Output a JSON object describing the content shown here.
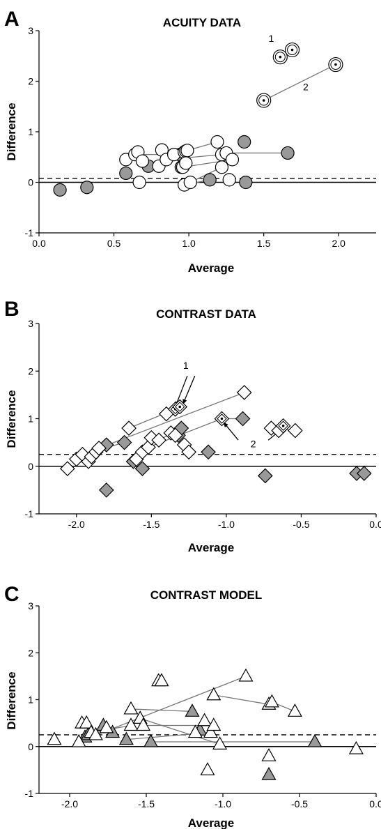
{
  "chart_data": [
    {
      "panel": "A",
      "type": "scatter",
      "title": "ACUITY DATA",
      "xlabel": "Average",
      "ylabel": "Difference",
      "xlim": [
        0.0,
        2.25
      ],
      "ylim": [
        -1,
        3
      ],
      "xticks": [
        "0.0",
        "0.5",
        "1.0",
        "1.5",
        "2.0"
      ],
      "yticks": [
        "-1",
        "0",
        "1",
        "2",
        "3"
      ],
      "marker": "circle",
      "reference_line": 0,
      "mean_line": 0.08,
      "open_points": [
        [
          0.58,
          0.45
        ],
        [
          0.64,
          0.55
        ],
        [
          0.66,
          0.6
        ],
        [
          0.69,
          0.42
        ],
        [
          0.67,
          0.0
        ],
        [
          0.8,
          0.32
        ],
        [
          0.82,
          0.64
        ],
        [
          0.85,
          0.45
        ],
        [
          0.9,
          0.55
        ],
        [
          0.96,
          0.3
        ],
        [
          0.97,
          0.6
        ],
        [
          0.98,
          0.62
        ],
        [
          0.98,
          0.38
        ],
        [
          0.99,
          0.63
        ],
        [
          0.97,
          -0.05
        ],
        [
          1.01,
          0.0
        ],
        [
          1.19,
          0.8
        ],
        [
          1.22,
          0.55
        ],
        [
          1.22,
          0.3
        ],
        [
          1.25,
          0.58
        ],
        [
          1.29,
          0.45
        ],
        [
          1.27,
          0.05
        ]
      ],
      "filled_points": [
        [
          0.14,
          -0.15
        ],
        [
          0.32,
          -0.1
        ],
        [
          0.58,
          0.18
        ],
        [
          0.73,
          0.32
        ],
        [
          0.94,
          0.55
        ],
        [
          0.95,
          0.3
        ],
        [
          1.14,
          0.05
        ],
        [
          1.37,
          0.8
        ],
        [
          1.38,
          0.0
        ],
        [
          1.66,
          0.58
        ]
      ],
      "dotted_points": [
        [
          1.61,
          2.48
        ],
        [
          1.69,
          2.62
        ],
        [
          1.5,
          1.62
        ],
        [
          1.98,
          2.33
        ]
      ],
      "connections": [
        [
          [
            0.64,
            0.55
          ],
          [
            0.94,
            0.55
          ]
        ],
        [
          [
            0.73,
            0.32
          ],
          [
            0.99,
            0.63
          ]
        ],
        [
          [
            0.85,
            0.45
          ],
          [
            1.22,
            0.55
          ]
        ],
        [
          [
            0.98,
            0.62
          ],
          [
            1.19,
            0.8
          ]
        ],
        [
          [
            0.96,
            0.3
          ],
          [
            1.29,
            0.45
          ]
        ],
        [
          [
            1.01,
            0.0
          ],
          [
            1.22,
            0.3
          ]
        ],
        [
          [
            1.25,
            0.58
          ],
          [
            1.66,
            0.58
          ]
        ],
        [
          [
            0.97,
            -0.05
          ],
          [
            1.14,
            0.05
          ]
        ],
        [
          [
            1.5,
            1.62
          ],
          [
            1.98,
            2.33
          ]
        ]
      ],
      "annotations": [
        {
          "text": "1",
          "x": 1.55,
          "y": 2.78
        },
        {
          "text": "2",
          "x": 1.78,
          "y": 1.82
        }
      ]
    },
    {
      "panel": "B",
      "type": "scatter",
      "title": "CONTRAST DATA",
      "xlabel": "Average",
      "ylabel": "Difference",
      "xlim": [
        -2.25,
        0.0
      ],
      "ylim": [
        -1,
        3
      ],
      "xticks": [
        "-2.0",
        "-1.5",
        "-1.0",
        "-0.5",
        "0.0"
      ],
      "yticks": [
        "-1",
        "0",
        "1",
        "2",
        "3"
      ],
      "marker": "diamond",
      "reference_line": 0,
      "mean_line": 0.25,
      "open_points": [
        [
          -2.06,
          -0.05
        ],
        [
          -2.0,
          0.15
        ],
        [
          -1.96,
          0.25
        ],
        [
          -1.92,
          0.1
        ],
        [
          -1.9,
          0.2
        ],
        [
          -1.87,
          0.3
        ],
        [
          -1.85,
          0.38
        ],
        [
          -1.65,
          0.8
        ],
        [
          -1.6,
          0.15
        ],
        [
          -1.56,
          0.3
        ],
        [
          -1.52,
          0.4
        ],
        [
          -1.5,
          0.6
        ],
        [
          -1.45,
          0.55
        ],
        [
          -1.4,
          1.1
        ],
        [
          -1.37,
          0.7
        ],
        [
          -1.34,
          0.65
        ],
        [
          -1.28,
          0.45
        ],
        [
          -1.25,
          0.3
        ],
        [
          -0.88,
          1.55
        ],
        [
          -0.7,
          0.8
        ],
        [
          -0.65,
          0.75
        ],
        [
          -0.54,
          0.75
        ]
      ],
      "filled_points": [
        [
          -1.8,
          -0.5
        ],
        [
          -1.8,
          0.45
        ],
        [
          -1.68,
          0.5
        ],
        [
          -1.62,
          0.1
        ],
        [
          -1.56,
          -0.05
        ],
        [
          -1.32,
          0.65
        ],
        [
          -1.3,
          0.8
        ],
        [
          -1.12,
          0.3
        ],
        [
          -0.89,
          1.0
        ],
        [
          -0.74,
          -0.2
        ],
        [
          -0.13,
          -0.15
        ],
        [
          -0.08,
          -0.15
        ]
      ],
      "dotted_points": [
        [
          -1.34,
          1.2
        ],
        [
          -1.31,
          1.25
        ],
        [
          -1.03,
          1.0
        ],
        [
          -0.62,
          0.85
        ]
      ],
      "connections": [
        [
          [
            -1.85,
            0.38
          ],
          [
            -0.88,
            1.55
          ]
        ],
        [
          [
            -1.65,
            0.8
          ],
          [
            -1.34,
            1.2
          ]
        ],
        [
          [
            -1.52,
            0.4
          ],
          [
            -1.03,
            1.0
          ]
        ],
        [
          [
            -1.45,
            0.55
          ],
          [
            -1.3,
            0.8
          ]
        ],
        [
          [
            -1.37,
            0.7
          ],
          [
            -1.25,
            0.3
          ]
        ],
        [
          [
            -1.03,
            1.0
          ],
          [
            -0.89,
            1.0
          ]
        ],
        [
          [
            -0.7,
            0.8
          ],
          [
            -0.54,
            0.75
          ]
        ],
        [
          [
            -1.96,
            0.25
          ],
          [
            -1.68,
            0.5
          ]
        ]
      ],
      "arrows": [
        [
          [
            -1.26,
            1.9
          ],
          [
            -1.34,
            1.25
          ]
        ],
        [
          [
            -1.21,
            1.9
          ],
          [
            -1.29,
            1.3
          ]
        ],
        [
          [
            -0.92,
            0.55
          ],
          [
            -1.02,
            0.93
          ]
        ],
        [
          [
            -0.72,
            0.55
          ],
          [
            -0.63,
            0.78
          ]
        ]
      ],
      "annotations": [
        {
          "text": "1",
          "x": -1.27,
          "y": 2.05
        },
        {
          "text": "2",
          "x": -0.82,
          "y": 0.4
        }
      ]
    },
    {
      "panel": "C",
      "type": "scatter",
      "title": "CONTRAST MODEL",
      "xlabel": "Average",
      "ylabel": "Difference",
      "xlim": [
        -2.2,
        0.0
      ],
      "ylim": [
        -1,
        3
      ],
      "xticks": [
        "-2.0",
        "-1.5",
        "-1.0",
        "-0.5",
        "0.0"
      ],
      "yticks": [
        "-1",
        "0",
        "1",
        "2",
        "3"
      ],
      "marker": "triangle",
      "reference_line": 0,
      "mean_line": 0.25,
      "open_points": [
        [
          -2.1,
          0.15
        ],
        [
          -1.94,
          0.1
        ],
        [
          -1.92,
          0.5
        ],
        [
          -1.89,
          0.5
        ],
        [
          -1.86,
          0.3
        ],
        [
          -1.83,
          0.25
        ],
        [
          -1.76,
          0.4
        ],
        [
          -1.6,
          0.8
        ],
        [
          -1.6,
          0.45
        ],
        [
          -1.54,
          0.6
        ],
        [
          -1.52,
          0.45
        ],
        [
          -1.42,
          1.4
        ],
        [
          -1.4,
          1.4
        ],
        [
          -1.18,
          0.3
        ],
        [
          -1.12,
          0.55
        ],
        [
          -1.08,
          0.3
        ],
        [
          -1.06,
          0.45
        ],
        [
          -1.06,
          1.1
        ],
        [
          -1.02,
          0.05
        ],
        [
          -1.1,
          -0.5
        ],
        [
          -0.85,
          1.5
        ],
        [
          -0.7,
          0.9
        ],
        [
          -0.68,
          0.95
        ],
        [
          -0.7,
          -0.2
        ],
        [
          -0.53,
          0.75
        ],
        [
          -0.13,
          -0.05
        ]
      ],
      "filled_points": [
        [
          -1.9,
          0.2
        ],
        [
          -1.88,
          0.25
        ],
        [
          -1.78,
          0.45
        ],
        [
          -1.72,
          0.3
        ],
        [
          -1.63,
          0.15
        ],
        [
          -1.47,
          0.1
        ],
        [
          -1.2,
          0.75
        ],
        [
          -1.15,
          0.35
        ],
        [
          -0.7,
          -0.6
        ],
        [
          -0.4,
          0.1
        ]
      ],
      "connections": [
        [
          [
            -1.94,
            0.1
          ],
          [
            -0.85,
            1.5
          ]
        ],
        [
          [
            -1.6,
            0.8
          ],
          [
            -1.2,
            0.75
          ]
        ],
        [
          [
            -1.54,
            0.6
          ],
          [
            -1.02,
            0.05
          ]
        ],
        [
          [
            -1.52,
            0.45
          ],
          [
            -1.06,
            0.45
          ]
        ],
        [
          [
            -1.47,
            0.1
          ],
          [
            -0.4,
            0.1
          ]
        ],
        [
          [
            -1.06,
            1.1
          ],
          [
            -0.7,
            0.9
          ]
        ],
        [
          [
            -0.68,
            0.95
          ],
          [
            -0.53,
            0.75
          ]
        ],
        [
          [
            -1.86,
            0.3
          ],
          [
            -1.6,
            0.45
          ]
        ],
        [
          [
            -1.63,
            0.15
          ],
          [
            -1.08,
            0.3
          ]
        ]
      ],
      "annotations": []
    }
  ]
}
